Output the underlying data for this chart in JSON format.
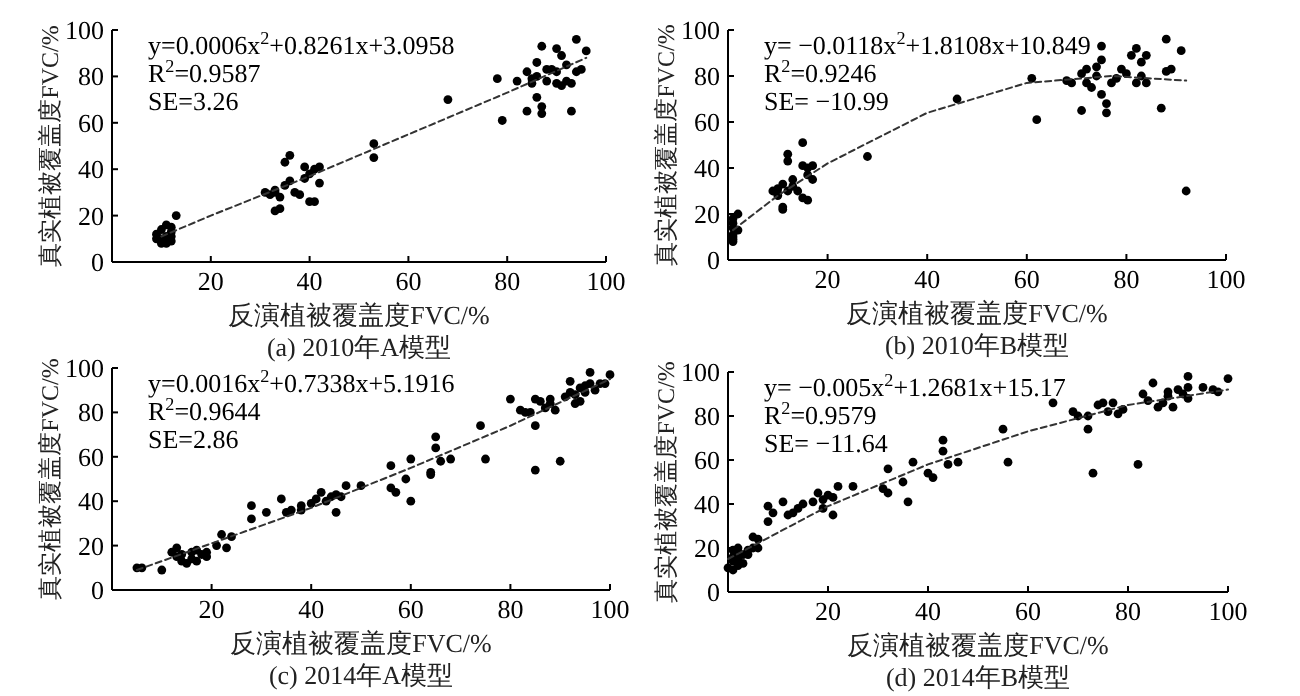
{
  "chart_data": [
    {
      "type": "scatter",
      "title": "(a) 2010年A模型",
      "xlabel": "反演植被覆盖度FVC/%",
      "ylabel": "真实植被覆盖度FVC/%",
      "xlim": [
        0,
        100
      ],
      "ylim": [
        0,
        100
      ],
      "xticks": [
        20,
        40,
        60,
        80,
        100
      ],
      "yticks": [
        0,
        20,
        40,
        60,
        80,
        100
      ],
      "marker": "circle",
      "annotations": [
        "y=0.0006x$^{2}$+0.8261x+3.0958",
        "R$^{2}$=0.9587",
        "SE=3.26"
      ],
      "series": [
        {
          "color": "#000000",
          "x": [
            9,
            10,
            10,
            11,
            11,
            12,
            12,
            13,
            11,
            12,
            10,
            9,
            12,
            31,
            32,
            33,
            33,
            34,
            34,
            35,
            35,
            36,
            37,
            38,
            39,
            39,
            40,
            41,
            41,
            42,
            42,
            40,
            36,
            33,
            53,
            53,
            68,
            78,
            79,
            84,
            82,
            84,
            85,
            85,
            86,
            86,
            87,
            87,
            87,
            88,
            89,
            90,
            90,
            91,
            91,
            92,
            93,
            93,
            94,
            94,
            95,
            96,
            90,
            86,
            88,
            92
          ],
          "values": [
            12,
            10,
            14,
            8,
            16,
            13,
            9,
            20,
            11,
            15,
            8,
            10,
            11,
            30,
            29,
            31,
            22,
            23,
            28,
            33,
            43,
            46,
            30,
            29,
            41,
            36,
            26,
            26,
            40,
            34,
            41,
            38,
            35,
            30,
            51,
            45,
            70,
            79,
            61,
            65,
            78,
            82,
            77,
            79,
            86,
            71,
            93,
            67,
            64,
            78,
            83,
            82,
            92,
            76,
            89,
            85,
            65,
            77,
            96,
            82,
            83,
            91,
            77,
            80,
            83,
            78
          ]
        },
        {
          "type": "line",
          "marker": "none",
          "color": "#333333",
          "line_style": "dashed",
          "x": [
            10,
            20,
            40,
            60,
            80,
            96
          ],
          "values": [
            11,
            20,
            37,
            55,
            73,
            88
          ]
        }
      ]
    },
    {
      "type": "scatter",
      "title": "(b) 2010年B模型",
      "xlabel": "反演植被覆盖度FVC/%",
      "ylabel": "真实植被覆盖度FVC/%",
      "xlim": [
        0,
        100
      ],
      "ylim": [
        0,
        100
      ],
      "xticks": [
        20,
        40,
        60,
        80,
        100
      ],
      "yticks": [
        0,
        20,
        40,
        60,
        80,
        100
      ],
      "marker": "circle",
      "annotations": [
        "y= −0.0118x$^{2}$+1.8108x+10.849",
        "R$^{2}$=0.9246",
        "SE= −10.99"
      ],
      "series": [
        {
          "color": "#000000",
          "x": [
            1,
            1,
            1,
            1,
            1,
            2,
            1,
            2,
            1,
            9,
            10,
            10,
            11,
            11,
            11,
            12,
            12,
            12,
            13,
            14,
            15,
            15,
            15,
            16,
            16,
            17,
            17,
            16,
            13,
            10,
            28,
            46,
            61,
            62,
            68,
            69,
            71,
            71,
            72,
            72,
            73,
            74,
            74,
            75,
            75,
            75,
            76,
            76,
            77,
            79,
            80,
            81,
            82,
            82,
            83,
            83,
            84,
            84,
            87,
            88,
            88,
            89,
            91,
            92,
            78
          ],
          "values": [
            8,
            10,
            14,
            16,
            18,
            20,
            11,
            13,
            9,
            30,
            29,
            31,
            23,
            22,
            33,
            30,
            43,
            46,
            32,
            30,
            51,
            41,
            27,
            26,
            40,
            35,
            41,
            37,
            35,
            28,
            45,
            70,
            79,
            61,
            78,
            77,
            65,
            81,
            83,
            77,
            75,
            80,
            84,
            87,
            93,
            72,
            68,
            64,
            77,
            83,
            81,
            89,
            92,
            77,
            86,
            80,
            89,
            77,
            66,
            96,
            82,
            83,
            91,
            30,
            79
          ]
        },
        {
          "type": "line",
          "marker": "none",
          "color": "#333333",
          "line_style": "dashed",
          "x": [
            1,
            10,
            20,
            40,
            60,
            77,
            92
          ],
          "values": [
            13,
            28,
            42,
            64,
            77,
            80,
            78
          ]
        }
      ]
    },
    {
      "type": "scatter",
      "title": "(c) 2014年A模型",
      "xlabel": "反演植被覆盖度FVC/%",
      "ylabel": "真实植被覆盖度FVC/%",
      "xlim": [
        0,
        100
      ],
      "ylim": [
        0,
        100
      ],
      "xticks": [
        20,
        40,
        60,
        80,
        100
      ],
      "yticks": [
        0,
        20,
        40,
        60,
        80,
        100
      ],
      "marker": "circle",
      "annotations": [
        "y=0.0016x$^{2}$+0.7338x+5.1916",
        "R$^{2}$=0.9644",
        "SE=2.86"
      ],
      "series": [
        {
          "color": "#000000",
          "x": [
            5,
            6,
            10,
            12,
            13,
            13,
            14,
            14,
            15,
            16,
            16,
            17,
            17,
            18,
            19,
            19,
            21,
            22,
            23,
            24,
            28,
            28,
            31,
            34,
            35,
            36,
            38,
            38,
            40,
            41,
            42,
            43,
            44,
            45,
            45,
            46,
            47,
            50,
            56,
            56,
            57,
            59,
            60,
            60,
            64,
            64,
            65,
            65,
            66,
            68,
            74,
            75,
            80,
            82,
            83,
            84,
            85,
            85,
            85,
            86,
            87,
            88,
            89,
            90,
            91,
            92,
            92,
            93,
            93,
            94,
            95,
            95,
            96,
            97,
            98,
            99,
            100,
            94,
            96,
            88
          ],
          "values": [
            10,
            10,
            9,
            17,
            15,
            19,
            13,
            16,
            12,
            17,
            14,
            13,
            18,
            16,
            15,
            17,
            20,
            25,
            19,
            24,
            32,
            38,
            35,
            41,
            35,
            36,
            38,
            36,
            39,
            41,
            44,
            40,
            42,
            43,
            35,
            42,
            47,
            47,
            46,
            56,
            44,
            50,
            40,
            59,
            53,
            52,
            64,
            69,
            58,
            59,
            74,
            59,
            86,
            81,
            80,
            80,
            74,
            54,
            86,
            85,
            82,
            84,
            81,
            58,
            87,
            89,
            94,
            84,
            88,
            91,
            89,
            92,
            98,
            90,
            93,
            93,
            97,
            85,
            93,
            86
          ]
        },
        {
          "type": "line",
          "marker": "none",
          "color": "#333333",
          "line_style": "dashed",
          "x": [
            5,
            20,
            40,
            60,
            80,
            100
          ],
          "values": [
            9,
            21,
            37,
            55,
            74,
            95
          ]
        }
      ]
    },
    {
      "type": "scatter",
      "title": "(d) 2014年B模型",
      "xlabel": "反演植被覆盖度FVC/%",
      "ylabel": "真实植被覆盖度FVC/%",
      "xlim": [
        0,
        100
      ],
      "ylim": [
        0,
        100
      ],
      "xticks": [
        20,
        40,
        60,
        80,
        100
      ],
      "yticks": [
        0,
        20,
        40,
        60,
        80,
        100
      ],
      "marker": "circle",
      "annotations": [
        "y= −0.005x$^{2}$+1.2681x+15.17",
        "R$^{2}$=0.9579",
        "SE= −11.64"
      ],
      "series": [
        {
          "color": "#000000",
          "x": [
            0,
            1,
            1,
            1,
            1,
            2,
            2,
            2,
            2,
            3,
            3,
            4,
            4,
            5,
            5,
            6,
            6,
            8,
            8,
            9,
            11,
            12,
            13,
            14,
            15,
            17,
            18,
            19,
            19,
            20,
            21,
            21,
            22,
            25,
            31,
            32,
            32,
            35,
            36,
            37,
            40,
            41,
            43,
            43,
            44,
            46,
            55,
            56,
            65,
            69,
            70,
            72,
            72,
            73,
            74,
            75,
            76,
            77,
            78,
            79,
            82,
            83,
            84,
            85,
            86,
            87,
            88,
            88,
            89,
            90,
            91,
            92,
            92,
            92,
            95,
            97,
            98,
            100
          ],
          "values": [
            11,
            10,
            14,
            16,
            19,
            12,
            15,
            18,
            20,
            13,
            17,
            19,
            17,
            20,
            25,
            24,
            20,
            32,
            39,
            36,
            41,
            35,
            36,
            38,
            40,
            41,
            45,
            38,
            42,
            44,
            35,
            43,
            48,
            48,
            47,
            45,
            56,
            50,
            41,
            59,
            54,
            52,
            64,
            69,
            58,
            59,
            74,
            59,
            86,
            82,
            80,
            74,
            80,
            54,
            85,
            86,
            82,
            86,
            81,
            83,
            58,
            90,
            87,
            95,
            84,
            86,
            91,
            89,
            84,
            92,
            90,
            98,
            88,
            93,
            93,
            92,
            91,
            97
          ]
        },
        {
          "type": "line",
          "marker": "none",
          "color": "#333333",
          "line_style": "dashed",
          "x": [
            0,
            10,
            20,
            40,
            60,
            80,
            100
          ],
          "values": [
            15,
            27,
            39,
            58,
            73,
            85,
            92
          ]
        }
      ]
    }
  ]
}
